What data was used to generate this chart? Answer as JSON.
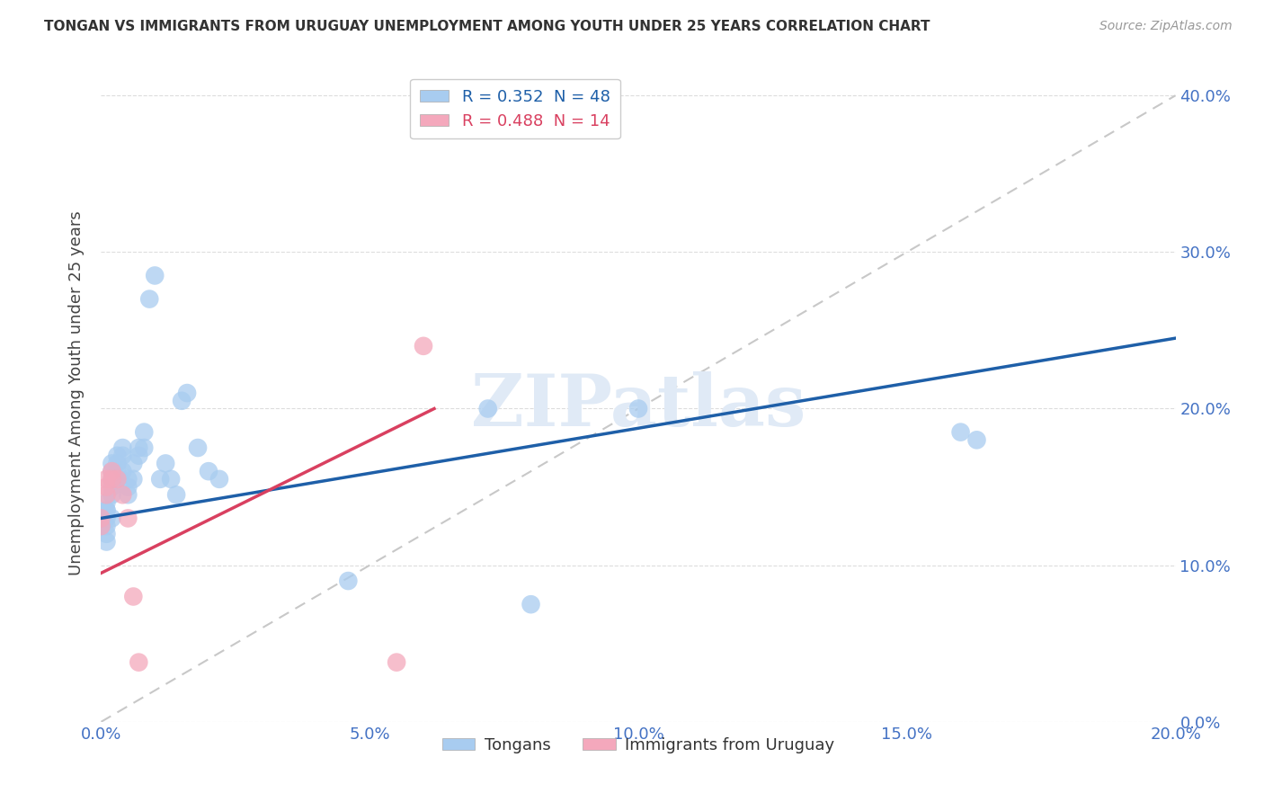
{
  "title": "TONGAN VS IMMIGRANTS FROM URUGUAY UNEMPLOYMENT AMONG YOUTH UNDER 25 YEARS CORRELATION CHART",
  "source": "Source: ZipAtlas.com",
  "ylabel_label": "Unemployment Among Youth under 25 years",
  "legend_tongan": "Tongans",
  "legend_uruguay": "Immigrants from Uruguay",
  "R_tongan": 0.352,
  "N_tongan": 48,
  "R_uruguay": 0.488,
  "N_uruguay": 14,
  "tongan_color": "#A8CCF0",
  "uruguay_color": "#F4A8BC",
  "tongan_line_color": "#1E5FA8",
  "uruguay_line_color": "#D94060",
  "dashed_line_color": "#C8C8C8",
  "background_color": "#FFFFFF",
  "tick_color": "#4472C4",
  "title_color": "#333333",
  "source_color": "#999999",
  "watermark_color": "#E0EAF6",
  "xlim": [
    0.0,
    0.2
  ],
  "ylim": [
    0.0,
    0.42
  ],
  "xticks": [
    0.0,
    0.05,
    0.1,
    0.15,
    0.2
  ],
  "yticks": [
    0.0,
    0.1,
    0.2,
    0.3,
    0.4
  ],
  "tongan_x": [
    0.0,
    0.0,
    0.001,
    0.001,
    0.001,
    0.001,
    0.001,
    0.001,
    0.001,
    0.002,
    0.002,
    0.002,
    0.002,
    0.002,
    0.002,
    0.003,
    0.003,
    0.003,
    0.003,
    0.004,
    0.004,
    0.004,
    0.005,
    0.005,
    0.005,
    0.006,
    0.006,
    0.007,
    0.007,
    0.008,
    0.008,
    0.009,
    0.01,
    0.011,
    0.012,
    0.013,
    0.014,
    0.015,
    0.016,
    0.018,
    0.02,
    0.022,
    0.046,
    0.072,
    0.08,
    0.1,
    0.16,
    0.163
  ],
  "tongan_y": [
    0.13,
    0.125,
    0.135,
    0.13,
    0.125,
    0.14,
    0.135,
    0.12,
    0.115,
    0.165,
    0.16,
    0.155,
    0.15,
    0.145,
    0.13,
    0.17,
    0.165,
    0.16,
    0.155,
    0.175,
    0.17,
    0.16,
    0.155,
    0.15,
    0.145,
    0.165,
    0.155,
    0.175,
    0.17,
    0.185,
    0.175,
    0.27,
    0.285,
    0.155,
    0.165,
    0.155,
    0.145,
    0.205,
    0.21,
    0.175,
    0.16,
    0.155,
    0.09,
    0.2,
    0.075,
    0.2,
    0.185,
    0.18
  ],
  "uruguay_x": [
    0.0,
    0.0,
    0.001,
    0.001,
    0.001,
    0.002,
    0.002,
    0.003,
    0.004,
    0.005,
    0.006,
    0.007,
    0.055,
    0.06
  ],
  "uruguay_y": [
    0.13,
    0.125,
    0.155,
    0.15,
    0.145,
    0.16,
    0.155,
    0.155,
    0.145,
    0.13,
    0.08,
    0.038,
    0.038,
    0.24
  ],
  "tongan_line_x": [
    0.0,
    0.2
  ],
  "tongan_line_y": [
    0.13,
    0.245
  ],
  "uruguay_line_x": [
    0.0,
    0.062
  ],
  "uruguay_line_y": [
    0.095,
    0.2
  ]
}
